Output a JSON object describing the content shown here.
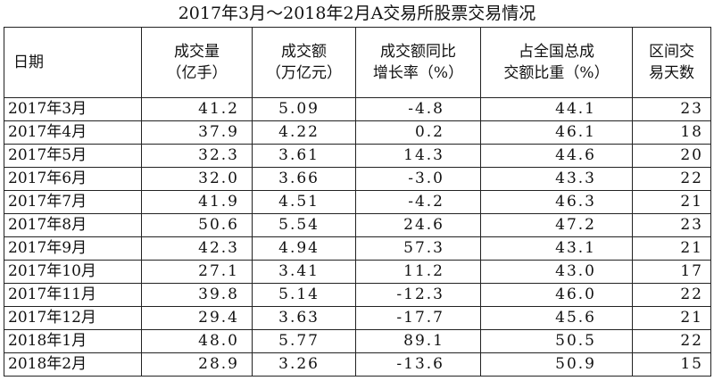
{
  "title": "2017年3月～2018年2月A交易所股票交易情况",
  "table": {
    "header": [
      [
        "日期"
      ],
      [
        "成交量",
        "（亿手）"
      ],
      [
        "成交额",
        "（万亿元）"
      ],
      [
        "成交额同比",
        "增长率（%）"
      ],
      [
        "占全国总成",
        "交额比重（%）"
      ],
      [
        "区间交",
        "易天数"
      ]
    ],
    "rows": [
      [
        "2017年3月",
        "41.2",
        "5.09",
        "-4.8",
        "44.1",
        "23"
      ],
      [
        "2017年4月",
        "37.9",
        "4.22",
        "0.2",
        "46.1",
        "18"
      ],
      [
        "2017年5月",
        "32.3",
        "3.61",
        "14.3",
        "44.6",
        "20"
      ],
      [
        "2017年6月",
        "32.0",
        "3.66",
        "-3.0",
        "43.3",
        "22"
      ],
      [
        "2017年7月",
        "41.9",
        "4.51",
        "-4.2",
        "46.3",
        "21"
      ],
      [
        "2017年8月",
        "50.6",
        "5.54",
        "24.6",
        "47.2",
        "23"
      ],
      [
        "2017年9月",
        "42.3",
        "4.94",
        "57.3",
        "43.1",
        "21"
      ],
      [
        "2017年10月",
        "27.1",
        "3.41",
        "11.2",
        "43.0",
        "17"
      ],
      [
        "2017年11月",
        "39.8",
        "5.14",
        "-12.3",
        "46.0",
        "22"
      ],
      [
        "2017年12月",
        "29.4",
        "3.63",
        "-17.7",
        "45.6",
        "21"
      ],
      [
        "2018年1月",
        "48.0",
        "5.77",
        "89.1",
        "50.5",
        "22"
      ],
      [
        "2018年2月",
        "28.9",
        "3.26",
        "-13.6",
        "50.9",
        "15"
      ]
    ]
  }
}
